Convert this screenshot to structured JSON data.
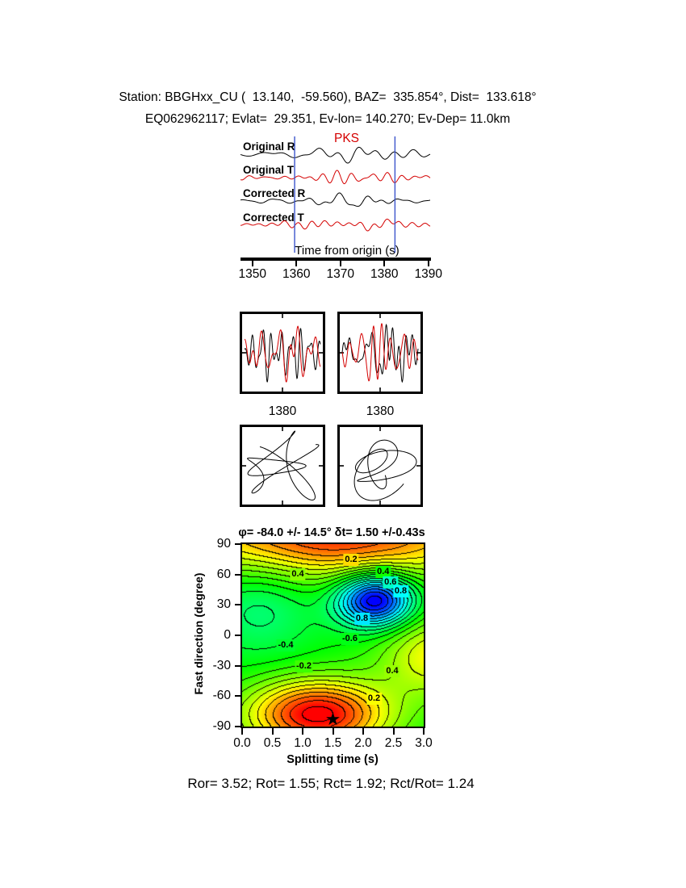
{
  "header": {
    "line1": "Station: BBGHxx_CU (  13.140,  -59.560), BAZ=  335.854°, Dist=  133.618°",
    "line2": "EQ062962117; Evlat=  29.351, Ev-lon= 140.270; Ev-Dep= 11.0km"
  },
  "footer": {
    "text": "Ror= 3.52; Rot= 1.55; Rct= 1.92; Rct/Rot= 1.24",
    "values": {
      "Ror": 3.52,
      "Rot": 1.55,
      "Rct": 1.92,
      "Rct_over_Rot": 1.24
    }
  },
  "chart_data": [
    {
      "id": "trace-panel",
      "type": "line",
      "phase_label": "PKS",
      "series": [
        {
          "label": "Original R",
          "color": "#000000",
          "seed": 101,
          "amp": 11
        },
        {
          "label": "Original T",
          "color": "#d40000",
          "seed": 102,
          "amp": 9
        },
        {
          "label": "Corrected R",
          "color": "#000000",
          "seed": 103,
          "amp": 10
        },
        {
          "label": "Corrected T",
          "color": "#d40000",
          "seed": 104,
          "amp": 8
        }
      ],
      "x_axis": {
        "label": "Time from origin (s)",
        "ticks": [
          1350,
          1360,
          1370,
          1380,
          1390
        ],
        "range": [
          1347.3,
          1390.4
        ]
      },
      "window": {
        "start": 1359.6,
        "end": 1382.4,
        "color": "#3c55cc"
      }
    },
    {
      "id": "windowed-waveform-panels",
      "type": "line",
      "panels": [
        {
          "tick_label": "1380",
          "series": [
            {
              "color": "#000000",
              "seed": 201
            },
            {
              "color": "#d40000",
              "seed": 202
            }
          ]
        },
        {
          "tick_label": "1380",
          "series": [
            {
              "color": "#000000",
              "seed": 203
            },
            {
              "color": "#d40000",
              "seed": 204
            }
          ]
        }
      ]
    },
    {
      "id": "particle-motion-panels",
      "type": "path",
      "panels": [
        {
          "seed": 301
        },
        {
          "seed": 302
        }
      ]
    },
    {
      "id": "splitting-misfit-contour",
      "type": "contour",
      "title": "φ= -84.0 +/- 14.5° δt= 1.50 +/-0.43s",
      "best_fit": {
        "phi_deg": -84.0,
        "phi_err_deg": 14.5,
        "dt_s": 1.5,
        "dt_err_s": 0.43
      },
      "xlabel": "Splitting time (s)",
      "ylabel": "Fast direction (degree)",
      "xlim": [
        0,
        3
      ],
      "ylim": [
        -90,
        90
      ],
      "xticks": [
        0,
        0.5,
        1,
        1.5,
        2,
        2.5,
        3
      ],
      "yticks": [
        90,
        60,
        30,
        0,
        -30,
        -60,
        -90
      ],
      "contour_interval": 0.1,
      "colormap": "rainbow",
      "grid": false,
      "star": {
        "t": 1.5,
        "phi": -84,
        "symbol": "★"
      },
      "features": [
        {
          "a": 1.05,
          "t": 1.25,
          "phi": -78,
          "st": 1.15,
          "sp": 34
        },
        {
          "a": 0.92,
          "t": 1.5,
          "phi": 98,
          "st": 2.6,
          "sp": 42
        },
        {
          "a": -1.15,
          "t": 2.2,
          "phi": 35,
          "st": 0.62,
          "sp": 26
        },
        {
          "a": 0.5,
          "t": 3.2,
          "phi": -20,
          "st": 0.9,
          "sp": 40
        },
        {
          "a": -0.25,
          "t": 0.3,
          "phi": 30,
          "st": 0.9,
          "sp": 50
        }
      ],
      "labels": [
        {
          "text": "0.2",
          "t": 1.8,
          "phi": 74
        },
        {
          "text": "0.4",
          "t": 0.92,
          "phi": 60
        },
        {
          "text": "0.4",
          "t": 2.33,
          "phi": 62
        },
        {
          "text": "0.6",
          "t": 2.45,
          "phi": 52
        },
        {
          "text": "0.8",
          "t": 2.62,
          "phi": 43
        },
        {
          "text": "0.8",
          "t": 1.98,
          "phi": 16
        },
        {
          "text": "-0.6",
          "t": 1.78,
          "phi": -4
        },
        {
          "text": "-0.4",
          "t": 0.72,
          "phi": -10
        },
        {
          "text": "-0.2",
          "t": 1.02,
          "phi": -31
        },
        {
          "text": "0.4",
          "t": 2.48,
          "phi": -36
        },
        {
          "text": "0.2",
          "t": 2.18,
          "phi": -63
        }
      ]
    }
  ]
}
